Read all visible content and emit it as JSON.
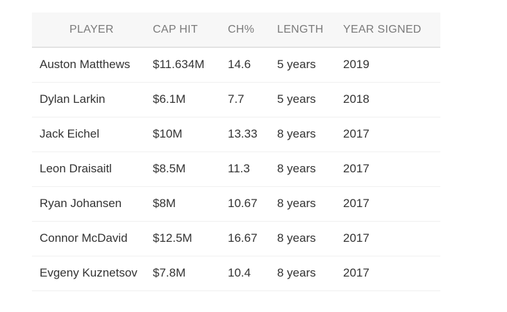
{
  "table": {
    "headers": [
      "PLAYER",
      "CAP HIT",
      "CH%",
      "LENGTH",
      "YEAR SIGNED"
    ],
    "rows": [
      [
        "Auston Matthews",
        "$11.634M",
        "14.6",
        "5 years",
        "2019"
      ],
      [
        "Dylan Larkin",
        "$6.1M",
        "7.7",
        "5 years",
        "2018"
      ],
      [
        "Jack Eichel",
        "$10M",
        "13.33",
        "8 years",
        "2017"
      ],
      [
        "Leon Draisaitl",
        "$8.5M",
        "11.3",
        "8 years",
        "2017"
      ],
      [
        "Ryan Johansen",
        "$8M",
        "10.67",
        "8 years",
        "2017"
      ],
      [
        "Connor McDavid",
        "$12.5M",
        "16.67",
        "8 years",
        "2017"
      ],
      [
        "Evgeny Kuznetsov",
        "$7.8M",
        "10.4",
        "8 years",
        "2017"
      ]
    ]
  },
  "colors": {
    "header_bg": "#f7f7f7",
    "header_text": "#7a7a7a",
    "cell_text": "#333333",
    "row_border": "#f0f0f0"
  }
}
